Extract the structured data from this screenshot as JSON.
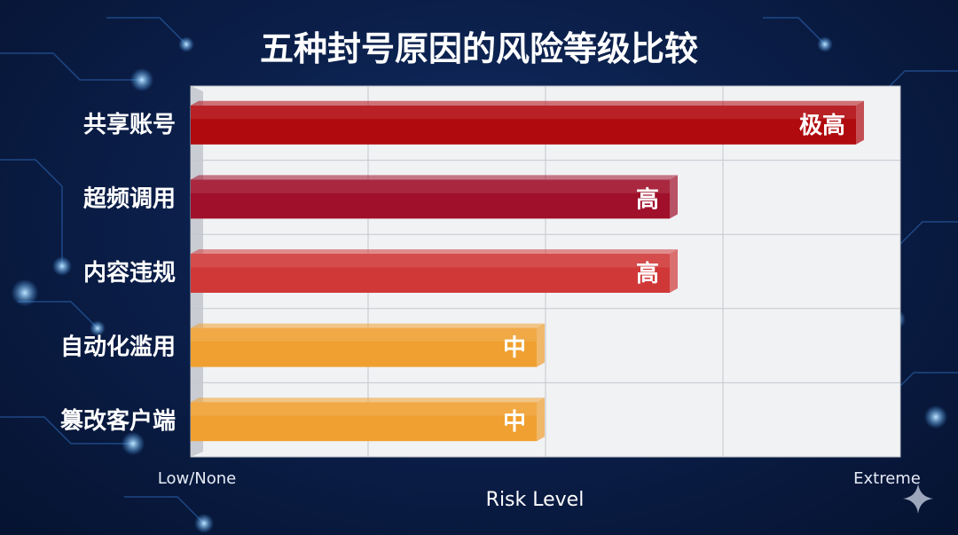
{
  "chart_data": {
    "type": "bar",
    "orientation": "horizontal",
    "title": "五种封号原因的风险等级比较",
    "xlabel": "Risk Level",
    "x_tick_labels": [
      "Low/None",
      "Extreme"
    ],
    "xlim": [
      0,
      4
    ],
    "grid": true,
    "legend": "none",
    "categories": [
      "共享账号",
      "超频调用",
      "内容违规",
      "自动化滥用",
      "篡改客户端"
    ],
    "values": [
      3.75,
      2.7,
      2.7,
      1.95,
      1.95
    ],
    "data_labels": [
      "极高",
      "高",
      "高",
      "中",
      "中"
    ],
    "colors": [
      "#b00a0e",
      "#a0102a",
      "#d03838",
      "#f0a030",
      "#f0a030"
    ]
  }
}
